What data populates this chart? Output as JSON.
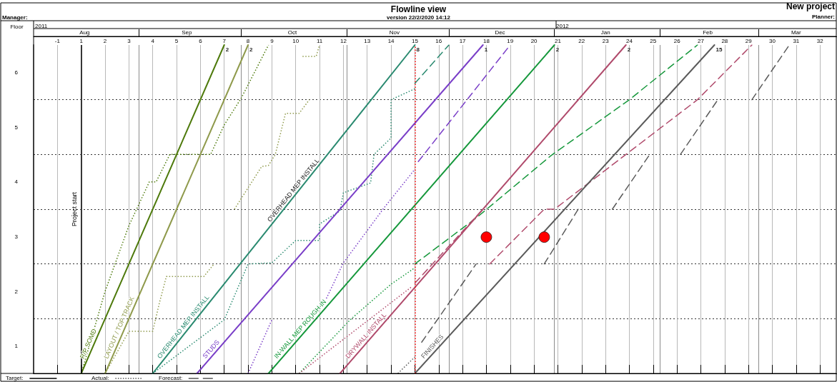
{
  "chart_data": {
    "type": "line",
    "title": "Flowline view",
    "subtitle": "version 22/2/2020 14:12",
    "ylabel": "Floor",
    "xlim": [
      "2011-08-01",
      "2012-03-24"
    ],
    "xticks": [
      {
        "value": "2011-08-08",
        "label": "-1"
      },
      {
        "value": "2011-08-15",
        "label": "1"
      },
      {
        "value": "2011-08-22",
        "label": "2"
      },
      {
        "value": "2011-08-29",
        "label": "3"
      },
      {
        "value": "2011-09-05",
        "label": "4"
      },
      {
        "value": "2011-09-12",
        "label": "5"
      },
      {
        "value": "2011-09-19",
        "label": "6"
      },
      {
        "value": "2011-09-26",
        "label": "7"
      },
      {
        "value": "2011-10-03",
        "label": "8"
      },
      {
        "value": "2011-10-10",
        "label": "9"
      },
      {
        "value": "2011-10-17",
        "label": "10"
      },
      {
        "value": "2011-10-24",
        "label": "11"
      },
      {
        "value": "2011-10-31",
        "label": "12"
      },
      {
        "value": "2011-11-07",
        "label": "13"
      },
      {
        "value": "2011-11-14",
        "label": "14"
      },
      {
        "value": "2011-11-21",
        "label": "15"
      },
      {
        "value": "2011-11-28",
        "label": "16"
      },
      {
        "value": "2011-12-05",
        "label": "17"
      },
      {
        "value": "2011-12-12",
        "label": "18"
      },
      {
        "value": "2011-12-19",
        "label": "19"
      },
      {
        "value": "2011-12-26",
        "label": "20"
      },
      {
        "value": "2012-01-02",
        "label": "21"
      },
      {
        "value": "2012-01-09",
        "label": "22"
      },
      {
        "value": "2012-01-16",
        "label": "23"
      },
      {
        "value": "2012-01-23",
        "label": "24"
      },
      {
        "value": "2012-01-30",
        "label": "25"
      },
      {
        "value": "2012-02-06",
        "label": "26"
      },
      {
        "value": "2012-02-13",
        "label": "27"
      },
      {
        "value": "2012-02-20",
        "label": "28"
      },
      {
        "value": "2012-02-27",
        "label": "29"
      },
      {
        "value": "2012-03-05",
        "label": "30"
      },
      {
        "value": "2012-03-12",
        "label": "31"
      },
      {
        "value": "2012-03-19",
        "label": "32"
      }
    ],
    "x2lim": [
      "2011-08-01",
      "2012-03-24"
    ],
    "x2ticks": [
      {
        "value": "2011-09-01",
        "label": null
      },
      {
        "value": "2011-10-01",
        "label": null
      },
      {
        "value": "2011-11-01",
        "label": null
      },
      {
        "value": "2011-12-01",
        "label": null
      },
      {
        "value": "2012-01-01",
        "label": null
      },
      {
        "value": "2012-02-01",
        "label": null
      },
      {
        "value": "2012-03-01",
        "label": null
      },
      {
        "value": "2011-08-16",
        "label": "Aug"
      },
      {
        "value": "2011-09-15",
        "label": "Sep"
      },
      {
        "value": "2011-10-16",
        "label": "Oct"
      },
      {
        "value": "2011-11-15",
        "label": "Nov"
      },
      {
        "value": "2011-12-16",
        "label": "Dec"
      },
      {
        "value": "2012-01-16",
        "label": "Jan"
      },
      {
        "value": "2012-02-15",
        "label": "Feb"
      },
      {
        "value": "2012-03-12",
        "label": "Mar"
      }
    ],
    "ylim": [
      0,
      6
    ],
    "yticks": [
      {
        "value": 1,
        "label": null
      },
      {
        "value": 2,
        "label": null
      },
      {
        "value": 3,
        "label": null
      },
      {
        "value": 4,
        "label": null
      },
      {
        "value": 5,
        "label": null
      },
      {
        "value": 0.5,
        "label": "1"
      },
      {
        "value": 1.5,
        "label": "2"
      },
      {
        "value": 2.5,
        "label": "3"
      },
      {
        "value": 3.5,
        "label": "4"
      },
      {
        "value": 4.5,
        "label": "5"
      },
      {
        "value": 5.5,
        "label": "6"
      }
    ],
    "grid": true,
    "marker": "none",
    "line_style": "solid",
    "series": [
      {
        "name": "R/P SOMD",
        "color": "#4e7a0c",
        "x": [
          "2011-08-15",
          "2011-09-26"
        ],
        "values": [
          0,
          6
        ]
      },
      {
        "name": "LAYOUT / TOP TRACK",
        "color": "#8f9a4c",
        "x": [
          "2011-08-22",
          "2011-10-03"
        ],
        "values": [
          0,
          6
        ]
      },
      {
        "name": "OVERHEAD MEP INSTALL",
        "color": "#2a8a70",
        "x": [
          "2011-09-05",
          "2011-11-21"
        ],
        "values": [
          0,
          6
        ]
      },
      {
        "name": "STUDS",
        "color": "#7a3fc8",
        "x": [
          "2011-09-18",
          "2011-12-11"
        ],
        "values": [
          0,
          6
        ]
      },
      {
        "name": "IN-WALL MEP ROUGH-IN",
        "color": "#16983c",
        "x": [
          "2011-10-09",
          "2012-01-01"
        ],
        "values": [
          0,
          6
        ]
      },
      {
        "name": "DRYWALL INSTALL",
        "color": "#b04b6c",
        "x": [
          "2011-10-30",
          "2012-01-22"
        ],
        "values": [
          0,
          6
        ]
      },
      {
        "name": "FINISHES",
        "color": "#5b5b5b",
        "x": [
          "2011-11-21",
          "2012-02-17"
        ],
        "values": [
          0,
          6
        ]
      },
      {
        "color": "#4e7a0c",
        "line_style": "dotted",
        "x": [
          "2011-08-15",
          "2011-08-22",
          "2011-08-29",
          "2011-09-04",
          "2011-09-06",
          "2011-09-10",
          "2011-09-22",
          "2011-09-26",
          "2011-10-01",
          "2011-10-09"
        ],
        "values": [
          0,
          1.5,
          2.7,
          3.5,
          3.5,
          4.0,
          4.0,
          4.54,
          5.03,
          6.0
        ]
      },
      {
        "color": "#8f9a4c",
        "line_style": "dotted",
        "x": [
          "2011-08-22",
          "2011-08-29",
          "2011-09-05",
          "2011-09-07",
          "2011-09-09",
          "2011-09-20",
          "2011-09-23"
        ],
        "values": [
          0,
          0.77,
          0.77,
          1.3,
          1.77,
          1.77,
          2.0
        ]
      },
      {
        "color": "#8f9a4c",
        "line_style": "dotted",
        "x": [
          "2011-09-29",
          "2011-10-07",
          "2011-10-09",
          "2011-10-11",
          "2011-10-14",
          "2011-10-18",
          "2011-10-21"
        ],
        "values": [
          3.0,
          3.78,
          3.8,
          4.0,
          4.75,
          4.75,
          5.0
        ]
      },
      {
        "color": "#8f9a4c",
        "line_style": "dotted",
        "x": [
          "2011-10-19",
          "2011-10-23",
          "2011-10-24"
        ],
        "values": [
          5.79,
          5.79,
          6.0
        ]
      },
      {
        "color": "#2a8a70",
        "line_style": "dotted",
        "x": [
          "2011-09-05",
          "2011-09-26",
          "2011-10-03",
          "2011-10-10",
          "2011-10-17",
          "2011-10-24",
          "2011-10-24",
          "2011-10-30",
          "2011-10-31",
          "2011-11-08",
          "2011-11-09",
          "2011-11-14",
          "2011-11-14",
          "2011-11-21"
        ],
        "values": [
          0,
          0.98,
          2.0,
          2.02,
          2.43,
          2.43,
          2.73,
          2.97,
          3.3,
          3.48,
          4.0,
          4.3,
          5.0,
          5.2
        ]
      },
      {
        "color": "#2a8a70",
        "line_style": "dashed",
        "x": [
          "2011-11-21",
          "2011-12-01"
        ],
        "values": [
          5.3,
          6.0
        ]
      },
      {
        "color": "#7a3fc8",
        "line_style": "dotted",
        "x": [
          "2011-10-03",
          "2011-10-10"
        ],
        "values": [
          0,
          0.98
        ]
      },
      {
        "color": "#7a3fc8",
        "line_style": "dotted",
        "x": [
          "2011-10-26",
          "2011-10-31",
          "2011-11-12",
          "2011-11-21"
        ],
        "values": [
          1.37,
          2.02,
          3.03,
          3.73
        ]
      },
      {
        "color": "#7a3fc8",
        "line_style": "dashed",
        "x": [
          "2011-11-22",
          "2011-12-19"
        ],
        "values": [
          3.87,
          6.0
        ]
      },
      {
        "color": "#16983c",
        "line_style": "dotted",
        "x": [
          "2011-10-18",
          "2011-11-02",
          "2011-11-14",
          "2011-11-21"
        ],
        "values": [
          0,
          0.98,
          1.63,
          1.93
        ]
      },
      {
        "color": "#16983c",
        "line_style": "dashed",
        "x": [
          "2011-11-21",
          "2011-12-09",
          "2011-12-31",
          "2012-01-23",
          "2012-02-12"
        ],
        "values": [
          2.0,
          2.84,
          3.98,
          5.0,
          6.0
        ]
      },
      {
        "color": "#b04b6c",
        "line_style": "dotted",
        "x": [
          "2011-10-18",
          "2011-11-20"
        ],
        "values": [
          0,
          1.58
        ]
      },
      {
        "color": "#b04b6c",
        "line_style": "dashed",
        "x": [
          "2011-11-21",
          "2011-12-11"
        ],
        "values": [
          1.65,
          3.0
        ]
      },
      {
        "color": "#b04b6c",
        "line_style": "dashed",
        "x": [
          "2011-12-13",
          "2011-12-29",
          "2012-01-01",
          "2012-01-22",
          "2012-02-12",
          "2012-02-28"
        ],
        "values": [
          2.0,
          3.0,
          3.0,
          4.0,
          5.0,
          6.0
        ]
      },
      {
        "color": "#5b5b5b",
        "line_style": "dotted",
        "x": [
          "2011-11-16",
          "2011-11-21"
        ],
        "values": [
          0,
          0.3
        ]
      },
      {
        "color": "#5b5b5b",
        "line_style": "dashed",
        "x": [
          "2011-11-23",
          "2011-12-09"
        ],
        "values": [
          0.57,
          2.0
        ]
      },
      {
        "color": "#5b5b5b",
        "line_style": "dashed",
        "x": [
          "2011-12-29",
          "2012-01-08"
        ],
        "values": [
          2.0,
          3.0
        ]
      },
      {
        "color": "#5b5b5b",
        "line_style": "dashed",
        "x": [
          "2012-01-18",
          "2012-01-29"
        ],
        "values": [
          3.0,
          4.0
        ]
      },
      {
        "color": "#5b5b5b",
        "line_style": "dashed",
        "x": [
          "2012-02-07",
          "2012-02-18"
        ],
        "values": [
          4.0,
          5.0
        ]
      },
      {
        "color": "#5b5b5b",
        "line_style": "dashed",
        "x": [
          "2012-02-28",
          "2012-03-10"
        ],
        "values": [
          5.0,
          6.0
        ]
      },
      {
        "type": "scatter",
        "color": "#ff0000",
        "marker": "circle",
        "x": [
          "2011-12-12",
          "2011-12-29"
        ],
        "values": [
          2.49,
          2.49
        ]
      }
    ],
    "ref_lines": [
      {
        "axis": "x",
        "value": "2011-08-15",
        "label": "Project start",
        "color": "#000000",
        "line_style": "solid"
      },
      {
        "axis": "x",
        "value": "2011-11-21",
        "label": null,
        "color": "#ff0000",
        "line_style": "dotted"
      }
    ],
    "annotations": [
      "Manager:",
      "New project",
      "Planner:",
      "2011",
      "2012",
      "Target:",
      "Actual:",
      "Forecast:",
      {
        "text": "2",
        "x": "2011-09-26",
        "y": 6
      },
      {
        "text": "2",
        "x": "2011-10-03",
        "y": 6
      },
      {
        "text": "8",
        "x": "2011-11-21",
        "y": 6
      },
      {
        "text": "1",
        "x": "2011-12-11",
        "y": 6
      },
      {
        "text": "2",
        "x": "2012-01-01",
        "y": 6
      },
      {
        "text": "2",
        "x": "2012-01-22",
        "y": 6
      },
      {
        "text": "15",
        "x": "2012-02-17",
        "y": 6
      },
      {
        "text": "OVERHEAD MEP INSTALL",
        "x": "2011-10-17",
        "y": 3.3
      }
    ]
  }
}
